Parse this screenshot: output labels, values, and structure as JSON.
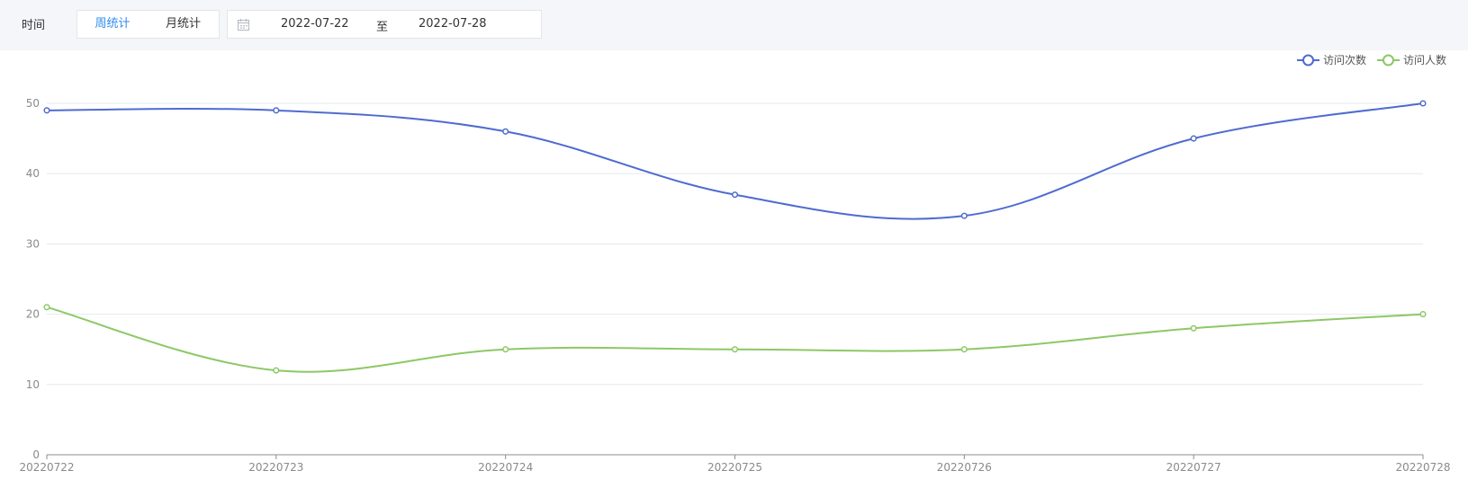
{
  "filter": {
    "label": "时间",
    "tabs": [
      {
        "label": "周统计",
        "active": true
      },
      {
        "label": "月统计",
        "active": false
      }
    ],
    "date_start": "2022-07-22",
    "date_separator": "至",
    "date_end": "2022-07-28",
    "accent_color": "#2d8cf0"
  },
  "chart_data": {
    "type": "line",
    "smooth": true,
    "categories": [
      "20220722",
      "20220723",
      "20220724",
      "20220725",
      "20220726",
      "20220727",
      "20220728"
    ],
    "series": [
      {
        "name": "访问次数",
        "color": "#4f6bd0",
        "values": [
          49,
          49,
          46,
          37,
          34,
          45,
          50
        ]
      },
      {
        "name": "访问人数",
        "color": "#8cc866",
        "values": [
          21,
          12,
          15,
          15,
          15,
          18,
          20
        ]
      }
    ],
    "ylim": [
      0,
      50
    ],
    "yticks": [
      0,
      10,
      20,
      30,
      40,
      50
    ],
    "grid": true,
    "legend": "top-right"
  }
}
